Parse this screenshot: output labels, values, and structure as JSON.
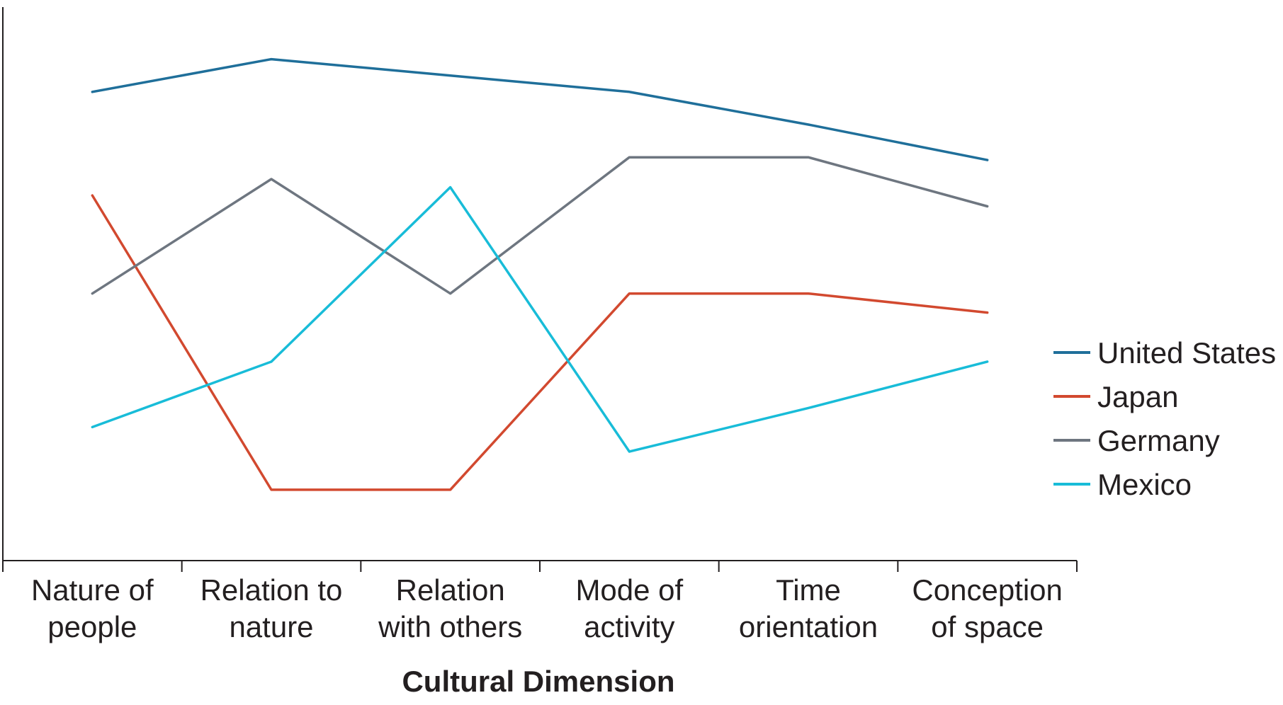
{
  "chart_data": {
    "type": "line",
    "title": "",
    "xlabel": "Cultural Dimension",
    "ylabel": "",
    "categories": [
      [
        "Nature of",
        "people"
      ],
      [
        "Relation to",
        "nature"
      ],
      [
        "Relation",
        "with others"
      ],
      [
        "Mode of",
        "activity"
      ],
      [
        "Time",
        "orientation"
      ],
      [
        "Conception",
        "of space"
      ]
    ],
    "ylim": [
      0,
      100
    ],
    "y_ticks_shown": false,
    "grid": false,
    "legend_position": "right",
    "series": [
      {
        "name": "United States",
        "color": "#1f6f9a",
        "values": [
          86,
          92,
          89,
          86,
          80,
          73.5
        ]
      },
      {
        "name": "Japan",
        "color": "#d2492f",
        "values": [
          67,
          13,
          13,
          49,
          49,
          45.5
        ]
      },
      {
        "name": "Germany",
        "color": "#6e7680",
        "values": [
          49,
          70,
          49,
          74,
          74,
          65
        ]
      },
      {
        "name": "Mexico",
        "color": "#18bcd8",
        "values": [
          24.5,
          36.5,
          68.5,
          20,
          28,
          36.5
        ]
      }
    ]
  }
}
